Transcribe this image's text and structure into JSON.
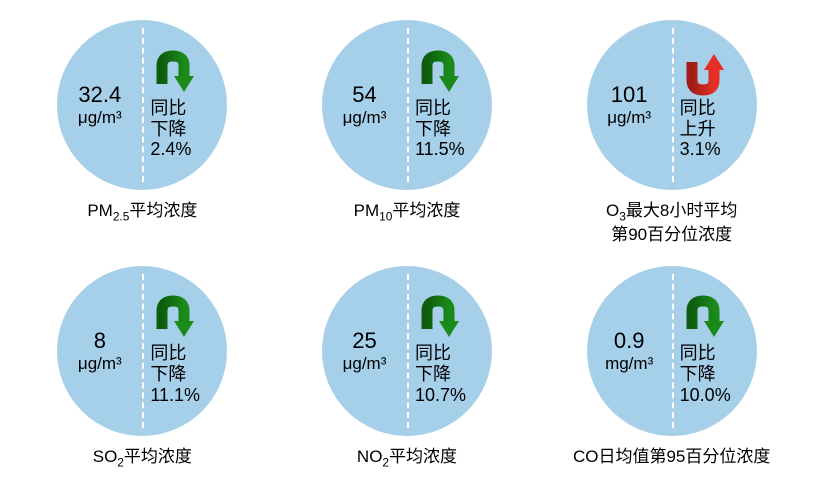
{
  "type": "infographic",
  "layout": {
    "rows": 2,
    "cols": 3
  },
  "circle_color": "#a6cfe9",
  "background_color": "#ffffff",
  "divider_color": "#ffffff",
  "text_color": "#000000",
  "arrow": {
    "down_color": "#1a8a1a",
    "down_gradient_dark": "#0e5d0e",
    "up_color": "#e63027",
    "up_gradient_dark": "#a01c15",
    "width": 46,
    "height": 46
  },
  "value_fontsize": 22,
  "unit_fontsize": 17,
  "trend_fontsize": 18,
  "label_fontsize": 17,
  "items": [
    {
      "value": "32.4",
      "unit": "μg/m³",
      "trend": "down",
      "trend_label": "同比\n下降",
      "percent": "2.4%",
      "label_html": "PM<sub>2.5</sub>平均浓度"
    },
    {
      "value": "54",
      "unit": "μg/m³",
      "trend": "down",
      "trend_label": "同比\n下降",
      "percent": "11.5%",
      "label_html": "PM<sub>10</sub>平均浓度"
    },
    {
      "value": "101",
      "unit": "μg/m³",
      "trend": "up",
      "trend_label": "同比\n上升",
      "percent": "3.1%",
      "label_html": "O<sub>3</sub>最大8小时平均\n第90百分位浓度"
    },
    {
      "value": "8",
      "unit": "μg/m³",
      "trend": "down",
      "trend_label": "同比\n下降",
      "percent": "11.1%",
      "label_html": "SO<sub>2</sub>平均浓度"
    },
    {
      "value": "25",
      "unit": "μg/m³",
      "trend": "down",
      "trend_label": "同比\n下降",
      "percent": "10.7%",
      "label_html": "NO<sub>2</sub>平均浓度"
    },
    {
      "value": "0.9",
      "unit": "mg/m³",
      "trend": "down",
      "trend_label": "同比\n下降",
      "percent": "10.0%",
      "label_html": "CO日均值第95百分位浓度"
    }
  ]
}
